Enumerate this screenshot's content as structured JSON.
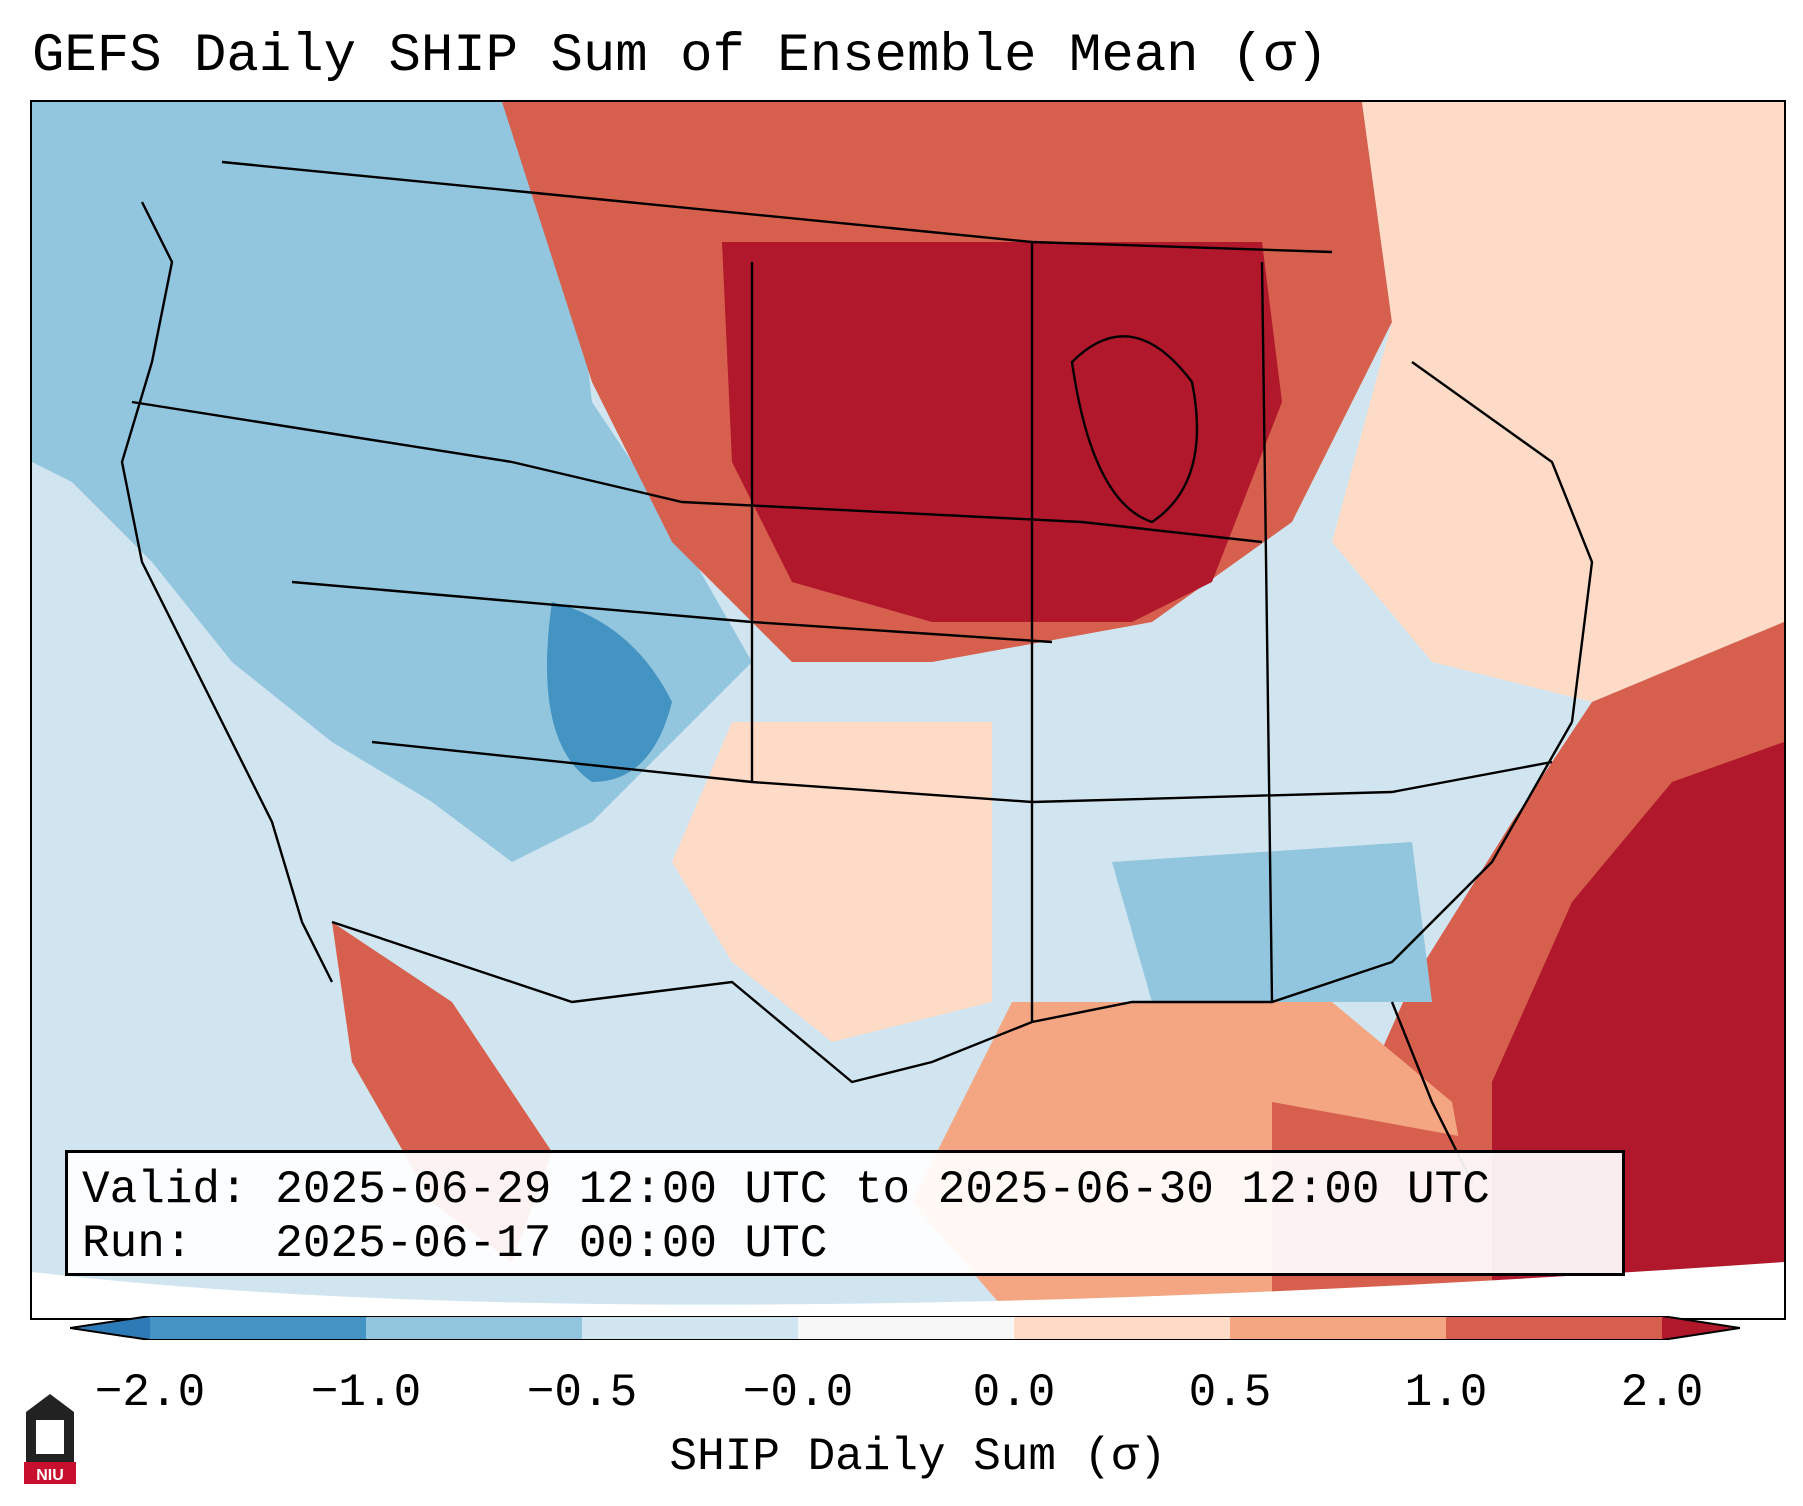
{
  "title": "GEFS Daily SHIP Sum of Ensemble Mean (σ)",
  "info": {
    "valid_label": "Valid:",
    "valid_value": "2025-06-29 12:00 UTC to 2025-06-30 12:00 UTC",
    "run_label": "Run:",
    "run_value": "2025-06-17 00:00 UTC"
  },
  "colorbar": {
    "label": "SHIP Daily Sum (σ)",
    "ticks": [
      "−2.0",
      "−1.0",
      "−0.5",
      "−0.0",
      "0.0",
      "0.5",
      "1.0",
      "2.0"
    ],
    "colors": [
      "#2c7bb6",
      "#4393c3",
      "#92c5de",
      "#d1e5f0",
      "#f7f7f7",
      "#fddbc7",
      "#f4a582",
      "#d6604d",
      "#b2182b"
    ]
  },
  "logo": {
    "text": "NIU"
  }
}
